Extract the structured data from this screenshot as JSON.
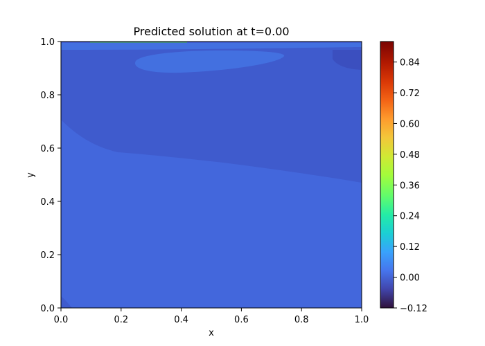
{
  "chart_data": {
    "type": "heatmap",
    "title": "Predicted solution at t=0.00",
    "xlabel": "x",
    "ylabel": "y",
    "xlim": [
      0.0,
      1.0
    ],
    "ylim": [
      0.0,
      1.0
    ],
    "x_ticks": [
      "0.0",
      "0.2",
      "0.4",
      "0.6",
      "0.8",
      "1.0"
    ],
    "y_ticks": [
      "0.0",
      "0.2",
      "0.4",
      "0.6",
      "0.8",
      "1.0"
    ],
    "colorbar": {
      "min": -0.12,
      "max": 0.92,
      "tick_values": [
        -0.12,
        0.0,
        0.12,
        0.24,
        0.36,
        0.48,
        0.6,
        0.72,
        0.84
      ],
      "tick_labels": [
        "−0.12",
        "0.00",
        "0.12",
        "0.24",
        "0.36",
        "0.48",
        "0.60",
        "0.72",
        "0.84"
      ]
    },
    "regions": [
      {
        "name": "upper-band",
        "level": -0.01,
        "color": "#3f5bcd"
      },
      {
        "name": "lower-band",
        "level": 0.02,
        "color": "#4367dc"
      },
      {
        "name": "top-lobe",
        "level": 0.03,
        "color": "#4370e0"
      },
      {
        "name": "top-right-pocket",
        "level": -0.04,
        "color": "#3b4fbf"
      }
    ]
  }
}
